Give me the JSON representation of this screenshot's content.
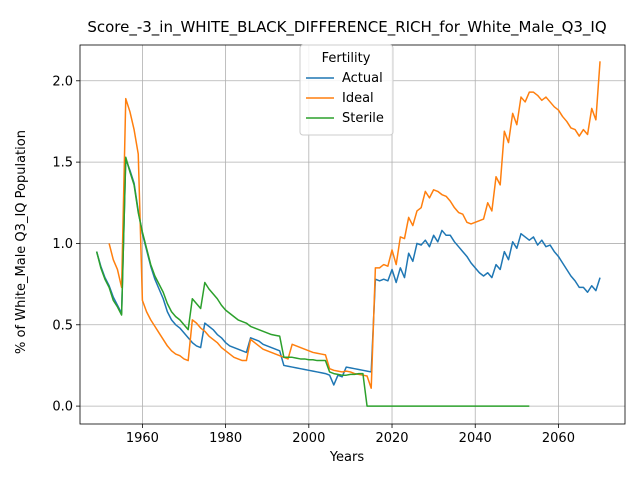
{
  "chart_data": {
    "type": "line",
    "title": "Score_-3_in_WHITE_BLACK_DIFFERENCE_RICH_for_White_Male_Q3_IQ",
    "xlabel": "Years",
    "ylabel": "% of White_Male Q3_IQ Population",
    "xlim": [
      1945,
      2076
    ],
    "ylim": [
      -0.11,
      2.22
    ],
    "xticks": [
      1960,
      1980,
      2000,
      2020,
      2040,
      2060
    ],
    "yticks": [
      0.0,
      0.5,
      1.0,
      1.5,
      2.0
    ],
    "xtick_labels": [
      "1960",
      "1980",
      "2000",
      "2020",
      "2040",
      "2060"
    ],
    "ytick_labels": [
      "0.0",
      "0.5",
      "1.0",
      "1.5",
      "2.0"
    ],
    "grid": true,
    "legend": {
      "title": "Fertility",
      "placement": "top-center"
    },
    "series": [
      {
        "name": "Actual",
        "color": "#1f77b4",
        "points": [
          [
            1949,
            0.95
          ],
          [
            1950,
            0.86
          ],
          [
            1951,
            0.79
          ],
          [
            1952,
            0.74
          ],
          [
            1953,
            0.67
          ],
          [
            1954,
            0.62
          ],
          [
            1955,
            0.57
          ],
          [
            1956,
            1.52
          ],
          [
            1957,
            1.45
          ],
          [
            1958,
            1.37
          ],
          [
            1959,
            1.2
          ],
          [
            1960,
            1.06
          ],
          [
            1961,
            0.96
          ],
          [
            1962,
            0.86
          ],
          [
            1963,
            0.78
          ],
          [
            1964,
            0.72
          ],
          [
            1965,
            0.66
          ],
          [
            1966,
            0.58
          ],
          [
            1967,
            0.53
          ],
          [
            1968,
            0.5
          ],
          [
            1969,
            0.48
          ],
          [
            1970,
            0.45
          ],
          [
            1971,
            0.42
          ],
          [
            1972,
            0.39
          ],
          [
            1973,
            0.37
          ],
          [
            1974,
            0.36
          ],
          [
            1975,
            0.51
          ],
          [
            1976,
            0.49
          ],
          [
            1977,
            0.47
          ],
          [
            1978,
            0.44
          ],
          [
            1979,
            0.42
          ],
          [
            1980,
            0.39
          ],
          [
            1981,
            0.37
          ],
          [
            1982,
            0.36
          ],
          [
            1983,
            0.35
          ],
          [
            1984,
            0.34
          ],
          [
            1985,
            0.33
          ],
          [
            1986,
            0.42
          ],
          [
            1987,
            0.41
          ],
          [
            1988,
            0.4
          ],
          [
            1989,
            0.38
          ],
          [
            1990,
            0.37
          ],
          [
            1991,
            0.36
          ],
          [
            1992,
            0.35
          ],
          [
            1993,
            0.34
          ],
          [
            1994,
            0.25
          ],
          [
            1995,
            0.245
          ],
          [
            1996,
            0.24
          ],
          [
            1997,
            0.235
          ],
          [
            1998,
            0.23
          ],
          [
            1999,
            0.225
          ],
          [
            2000,
            0.22
          ],
          [
            2001,
            0.215
          ],
          [
            2002,
            0.21
          ],
          [
            2003,
            0.205
          ],
          [
            2004,
            0.2
          ],
          [
            2005,
            0.19
          ],
          [
            2006,
            0.13
          ],
          [
            2007,
            0.19
          ],
          [
            2008,
            0.18
          ],
          [
            2009,
            0.24
          ],
          [
            2010,
            0.235
          ],
          [
            2011,
            0.23
          ],
          [
            2012,
            0.225
          ],
          [
            2013,
            0.22
          ],
          [
            2014,
            0.215
          ],
          [
            2015,
            0.21
          ],
          [
            2016,
            0.78
          ],
          [
            2017,
            0.77
          ],
          [
            2018,
            0.78
          ],
          [
            2019,
            0.77
          ],
          [
            2020,
            0.84
          ],
          [
            2021,
            0.76
          ],
          [
            2022,
            0.85
          ],
          [
            2023,
            0.79
          ],
          [
            2024,
            0.94
          ],
          [
            2025,
            0.89
          ],
          [
            2026,
            1.0
          ],
          [
            2027,
            0.99
          ],
          [
            2028,
            1.02
          ],
          [
            2029,
            0.98
          ],
          [
            2030,
            1.05
          ],
          [
            2031,
            1.01
          ],
          [
            2032,
            1.08
          ],
          [
            2033,
            1.05
          ],
          [
            2034,
            1.05
          ],
          [
            2035,
            1.01
          ],
          [
            2036,
            0.98
          ],
          [
            2037,
            0.95
          ],
          [
            2038,
            0.92
          ],
          [
            2039,
            0.88
          ],
          [
            2040,
            0.85
          ],
          [
            2041,
            0.82
          ],
          [
            2042,
            0.8
          ],
          [
            2043,
            0.82
          ],
          [
            2044,
            0.79
          ],
          [
            2045,
            0.87
          ],
          [
            2046,
            0.84
          ],
          [
            2047,
            0.95
          ],
          [
            2048,
            0.9
          ],
          [
            2049,
            1.01
          ],
          [
            2050,
            0.97
          ],
          [
            2051,
            1.06
          ],
          [
            2052,
            1.04
          ],
          [
            2053,
            1.02
          ],
          [
            2054,
            1.04
          ],
          [
            2055,
            0.99
          ],
          [
            2056,
            1.02
          ],
          [
            2057,
            0.98
          ],
          [
            2058,
            0.99
          ],
          [
            2059,
            0.95
          ],
          [
            2060,
            0.92
          ],
          [
            2061,
            0.88
          ],
          [
            2062,
            0.84
          ],
          [
            2063,
            0.8
          ],
          [
            2064,
            0.77
          ],
          [
            2065,
            0.73
          ],
          [
            2066,
            0.73
          ],
          [
            2067,
            0.7
          ],
          [
            2068,
            0.74
          ],
          [
            2069,
            0.71
          ],
          [
            2070,
            0.79
          ]
        ]
      },
      {
        "name": "Ideal",
        "color": "#ff7f0e",
        "points": [
          [
            1952,
            1.0
          ],
          [
            1953,
            0.9
          ],
          [
            1954,
            0.84
          ],
          [
            1955,
            0.73
          ],
          [
            1956,
            1.89
          ],
          [
            1957,
            1.81
          ],
          [
            1958,
            1.7
          ],
          [
            1959,
            1.55
          ],
          [
            1960,
            0.65
          ],
          [
            1961,
            0.58
          ],
          [
            1962,
            0.53
          ],
          [
            1963,
            0.49
          ],
          [
            1964,
            0.45
          ],
          [
            1965,
            0.41
          ],
          [
            1966,
            0.37
          ],
          [
            1967,
            0.34
          ],
          [
            1968,
            0.32
          ],
          [
            1969,
            0.31
          ],
          [
            1970,
            0.29
          ],
          [
            1971,
            0.28
          ],
          [
            1972,
            0.53
          ],
          [
            1973,
            0.51
          ],
          [
            1974,
            0.48
          ],
          [
            1975,
            0.46
          ],
          [
            1976,
            0.43
          ],
          [
            1977,
            0.41
          ],
          [
            1978,
            0.39
          ],
          [
            1979,
            0.36
          ],
          [
            1980,
            0.34
          ],
          [
            1981,
            0.32
          ],
          [
            1982,
            0.3
          ],
          [
            1983,
            0.29
          ],
          [
            1984,
            0.28
          ],
          [
            1985,
            0.28
          ],
          [
            1986,
            0.41
          ],
          [
            1987,
            0.39
          ],
          [
            1988,
            0.37
          ],
          [
            1989,
            0.35
          ],
          [
            1990,
            0.34
          ],
          [
            1991,
            0.33
          ],
          [
            1992,
            0.32
          ],
          [
            1993,
            0.31
          ],
          [
            1994,
            0.3
          ],
          [
            1995,
            0.29
          ],
          [
            1996,
            0.38
          ],
          [
            1997,
            0.37
          ],
          [
            1998,
            0.36
          ],
          [
            1999,
            0.35
          ],
          [
            2000,
            0.34
          ],
          [
            2001,
            0.33
          ],
          [
            2002,
            0.325
          ],
          [
            2003,
            0.32
          ],
          [
            2004,
            0.315
          ],
          [
            2005,
            0.23
          ],
          [
            2006,
            0.22
          ],
          [
            2007,
            0.215
          ],
          [
            2008,
            0.21
          ],
          [
            2009,
            0.215
          ],
          [
            2010,
            0.21
          ],
          [
            2011,
            0.2
          ],
          [
            2012,
            0.195
          ],
          [
            2013,
            0.19
          ],
          [
            2014,
            0.185
          ],
          [
            2015,
            0.11
          ],
          [
            2016,
            0.85
          ],
          [
            2017,
            0.85
          ],
          [
            2018,
            0.87
          ],
          [
            2019,
            0.86
          ],
          [
            2020,
            0.96
          ],
          [
            2021,
            0.87
          ],
          [
            2022,
            1.04
          ],
          [
            2023,
            1.03
          ],
          [
            2024,
            1.16
          ],
          [
            2025,
            1.11
          ],
          [
            2026,
            1.2
          ],
          [
            2027,
            1.22
          ],
          [
            2028,
            1.32
          ],
          [
            2029,
            1.28
          ],
          [
            2030,
            1.33
          ],
          [
            2031,
            1.32
          ],
          [
            2032,
            1.3
          ],
          [
            2033,
            1.29
          ],
          [
            2034,
            1.26
          ],
          [
            2035,
            1.22
          ],
          [
            2036,
            1.19
          ],
          [
            2037,
            1.18
          ],
          [
            2038,
            1.13
          ],
          [
            2039,
            1.12
          ],
          [
            2040,
            1.13
          ],
          [
            2041,
            1.14
          ],
          [
            2042,
            1.15
          ],
          [
            2043,
            1.25
          ],
          [
            2044,
            1.2
          ],
          [
            2045,
            1.41
          ],
          [
            2046,
            1.36
          ],
          [
            2047,
            1.69
          ],
          [
            2048,
            1.62
          ],
          [
            2049,
            1.8
          ],
          [
            2050,
            1.73
          ],
          [
            2051,
            1.9
          ],
          [
            2052,
            1.87
          ],
          [
            2053,
            1.93
          ],
          [
            2054,
            1.93
          ],
          [
            2055,
            1.91
          ],
          [
            2056,
            1.88
          ],
          [
            2057,
            1.9
          ],
          [
            2058,
            1.87
          ],
          [
            2059,
            1.84
          ],
          [
            2060,
            1.82
          ],
          [
            2061,
            1.78
          ],
          [
            2062,
            1.75
          ],
          [
            2063,
            1.71
          ],
          [
            2064,
            1.7
          ],
          [
            2065,
            1.66
          ],
          [
            2066,
            1.7
          ],
          [
            2067,
            1.67
          ],
          [
            2068,
            1.83
          ],
          [
            2069,
            1.76
          ],
          [
            2070,
            2.12
          ]
        ]
      },
      {
        "name": "Sterile",
        "color": "#2ca02c",
        "points": [
          [
            1949,
            0.95
          ],
          [
            1950,
            0.85
          ],
          [
            1951,
            0.78
          ],
          [
            1952,
            0.73
          ],
          [
            1953,
            0.65
          ],
          [
            1954,
            0.61
          ],
          [
            1955,
            0.56
          ],
          [
            1956,
            1.53
          ],
          [
            1957,
            1.44
          ],
          [
            1958,
            1.36
          ],
          [
            1959,
            1.19
          ],
          [
            1960,
            1.07
          ],
          [
            1961,
            0.97
          ],
          [
            1962,
            0.87
          ],
          [
            1963,
            0.8
          ],
          [
            1964,
            0.75
          ],
          [
            1965,
            0.7
          ],
          [
            1966,
            0.63
          ],
          [
            1967,
            0.58
          ],
          [
            1968,
            0.55
          ],
          [
            1969,
            0.53
          ],
          [
            1970,
            0.5
          ],
          [
            1971,
            0.47
          ],
          [
            1972,
            0.66
          ],
          [
            1973,
            0.63
          ],
          [
            1974,
            0.6
          ],
          [
            1975,
            0.76
          ],
          [
            1976,
            0.72
          ],
          [
            1977,
            0.69
          ],
          [
            1978,
            0.66
          ],
          [
            1979,
            0.62
          ],
          [
            1980,
            0.59
          ],
          [
            1981,
            0.57
          ],
          [
            1982,
            0.55
          ],
          [
            1983,
            0.53
          ],
          [
            1984,
            0.52
          ],
          [
            1985,
            0.51
          ],
          [
            1986,
            0.49
          ],
          [
            1987,
            0.48
          ],
          [
            1988,
            0.47
          ],
          [
            1989,
            0.46
          ],
          [
            1990,
            0.45
          ],
          [
            1991,
            0.44
          ],
          [
            1992,
            0.435
          ],
          [
            1993,
            0.43
          ],
          [
            1994,
            0.3
          ],
          [
            1995,
            0.3
          ],
          [
            1996,
            0.3
          ],
          [
            1997,
            0.295
          ],
          [
            1998,
            0.29
          ],
          [
            1999,
            0.29
          ],
          [
            2000,
            0.285
          ],
          [
            2001,
            0.285
          ],
          [
            2002,
            0.28
          ],
          [
            2003,
            0.28
          ],
          [
            2004,
            0.28
          ],
          [
            2005,
            0.21
          ],
          [
            2006,
            0.2
          ],
          [
            2007,
            0.195
          ],
          [
            2008,
            0.19
          ],
          [
            2009,
            0.19
          ],
          [
            2010,
            0.195
          ],
          [
            2011,
            0.195
          ],
          [
            2012,
            0.2
          ],
          [
            2013,
            0.2
          ],
          [
            2014,
            0.0
          ],
          [
            2015,
            0.0
          ],
          [
            2020,
            0.0
          ],
          [
            2030,
            0.0
          ],
          [
            2040,
            0.0
          ],
          [
            2050,
            0.0
          ],
          [
            2053,
            0.0
          ]
        ]
      }
    ]
  }
}
